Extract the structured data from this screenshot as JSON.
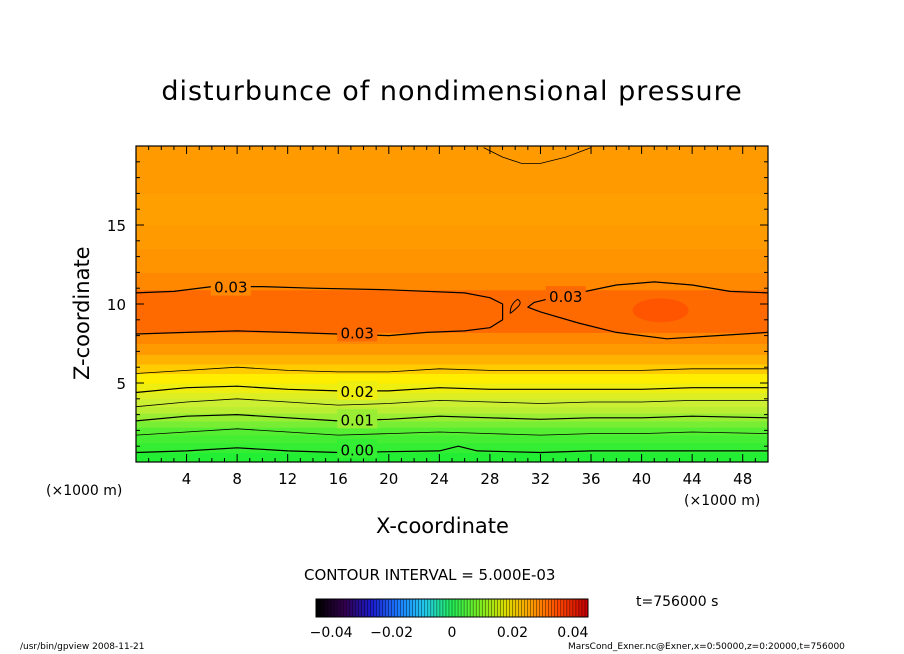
{
  "chart_data": {
    "type": "contour",
    "title": "disturbunce of nondimensional pressure",
    "xlabel": "X-coordinate",
    "ylabel": "Z-coordinate",
    "x_unit": "(×1000 m)",
    "y_unit": "(×1000 m)",
    "xlim": [
      0,
      50
    ],
    "ylim": [
      0,
      20
    ],
    "x_ticks": [
      4,
      8,
      12,
      16,
      20,
      24,
      28,
      32,
      36,
      40,
      44,
      48
    ],
    "y_ticks": [
      5,
      10,
      15
    ],
    "contour_interval_text": "CONTOUR INTERVAL = 5.000E-03",
    "contour_labels": [
      {
        "text": "0.03",
        "x": 7.5,
        "z": 11.1
      },
      {
        "text": "0.03",
        "x": 17.5,
        "z": 8.2
      },
      {
        "text": "0.03",
        "x": 34.0,
        "z": 10.5
      },
      {
        "text": "0.02",
        "x": 17.5,
        "z": 4.5
      },
      {
        "text": "0.01",
        "x": 17.5,
        "z": 2.7
      },
      {
        "text": "0.00",
        "x": 17.5,
        "z": 0.8
      }
    ],
    "contours": [
      {
        "level": 0.0,
        "points": [
          [
            0,
            0.6
          ],
          [
            4,
            0.7
          ],
          [
            8,
            0.9
          ],
          [
            12,
            0.7
          ],
          [
            16,
            0.6
          ],
          [
            20,
            0.65
          ],
          [
            24,
            0.7
          ],
          [
            25.5,
            1.0
          ],
          [
            27,
            0.7
          ],
          [
            32,
            0.6
          ],
          [
            36,
            0.7
          ],
          [
            40,
            0.7
          ],
          [
            44,
            0.7
          ],
          [
            50,
            0.7
          ]
        ]
      },
      {
        "level": 0.005,
        "points": [
          [
            0,
            1.7
          ],
          [
            4,
            1.9
          ],
          [
            8,
            2.1
          ],
          [
            12,
            1.9
          ],
          [
            16,
            1.7
          ],
          [
            20,
            1.8
          ],
          [
            24,
            1.9
          ],
          [
            28,
            1.8
          ],
          [
            32,
            1.7
          ],
          [
            36,
            1.8
          ],
          [
            40,
            1.8
          ],
          [
            44,
            1.9
          ],
          [
            50,
            1.8
          ]
        ]
      },
      {
        "level": 0.01,
        "points": [
          [
            0,
            2.6
          ],
          [
            4,
            2.9
          ],
          [
            8,
            3.0
          ],
          [
            12,
            2.8
          ],
          [
            16,
            2.6
          ],
          [
            20,
            2.7
          ],
          [
            24,
            2.9
          ],
          [
            28,
            2.8
          ],
          [
            32,
            2.7
          ],
          [
            36,
            2.8
          ],
          [
            40,
            2.8
          ],
          [
            44,
            2.9
          ],
          [
            50,
            2.8
          ]
        ]
      },
      {
        "level": 0.015,
        "points": [
          [
            0,
            3.5
          ],
          [
            4,
            3.8
          ],
          [
            8,
            4.0
          ],
          [
            12,
            3.8
          ],
          [
            16,
            3.6
          ],
          [
            20,
            3.7
          ],
          [
            24,
            3.9
          ],
          [
            28,
            3.8
          ],
          [
            32,
            3.7
          ],
          [
            36,
            3.8
          ],
          [
            40,
            3.8
          ],
          [
            44,
            3.9
          ],
          [
            50,
            3.9
          ]
        ]
      },
      {
        "level": 0.02,
        "points": [
          [
            0,
            4.4
          ],
          [
            4,
            4.7
          ],
          [
            8,
            4.8
          ],
          [
            12,
            4.6
          ],
          [
            16,
            4.5
          ],
          [
            20,
            4.5
          ],
          [
            24,
            4.7
          ],
          [
            28,
            4.6
          ],
          [
            32,
            4.6
          ],
          [
            36,
            4.6
          ],
          [
            40,
            4.6
          ],
          [
            44,
            4.7
          ],
          [
            50,
            4.7
          ]
        ]
      },
      {
        "level": 0.025,
        "points": [
          [
            0,
            5.6
          ],
          [
            4,
            5.8
          ],
          [
            8,
            6.0
          ],
          [
            12,
            5.8
          ],
          [
            16,
            5.7
          ],
          [
            20,
            5.7
          ],
          [
            24,
            5.9
          ],
          [
            28,
            5.8
          ],
          [
            32,
            5.8
          ],
          [
            36,
            5.8
          ],
          [
            40,
            5.8
          ],
          [
            44,
            5.9
          ],
          [
            50,
            5.9
          ]
        ]
      },
      {
        "level": 0.03,
        "points": [
          [
            0,
            8.1
          ],
          [
            4,
            8.2
          ],
          [
            8,
            8.3
          ],
          [
            12,
            8.2
          ],
          [
            16,
            8.1
          ],
          [
            20,
            8.0
          ],
          [
            23,
            8.2
          ],
          [
            26,
            8.3
          ],
          [
            28,
            8.5
          ],
          [
            29,
            9.0
          ],
          [
            29,
            10.0
          ],
          [
            28,
            10.4
          ],
          [
            26,
            10.7
          ],
          [
            20,
            10.9
          ],
          [
            14,
            11.0
          ],
          [
            10,
            11.1
          ],
          [
            6,
            11.1
          ],
          [
            3,
            10.8
          ],
          [
            0,
            10.7
          ]
        ]
      },
      {
        "level": 0.03,
        "points": [
          [
            50,
            8.2
          ],
          [
            46,
            8.0
          ],
          [
            42,
            7.8
          ],
          [
            38,
            8.2
          ],
          [
            35,
            8.8
          ],
          [
            32,
            9.5
          ],
          [
            31,
            9.8
          ],
          [
            31.5,
            10.1
          ],
          [
            33,
            10.4
          ],
          [
            35,
            10.7
          ],
          [
            38,
            11.2
          ],
          [
            41,
            11.4
          ],
          [
            44,
            11.2
          ],
          [
            47,
            10.8
          ],
          [
            50,
            10.7
          ]
        ]
      },
      {
        "level": 0.035,
        "points": [
          [
            27.5,
            19.9
          ],
          [
            29,
            19.3
          ],
          [
            30.5,
            18.9
          ],
          [
            32,
            18.9
          ],
          [
            34,
            19.3
          ],
          [
            36,
            19.9
          ]
        ]
      }
    ],
    "fill_bands": [
      {
        "from": 0,
        "to": 0.6,
        "color": "#22ee33"
      },
      {
        "from": 0.6,
        "to": 1.2,
        "color": "#33ee33"
      },
      {
        "from": 1.2,
        "to": 1.7,
        "color": "#44ee33"
      },
      {
        "from": 1.7,
        "to": 2.2,
        "color": "#55ee33"
      },
      {
        "from": 2.2,
        "to": 2.6,
        "color": "#77ee33"
      },
      {
        "from": 2.6,
        "to": 3.1,
        "color": "#99ee33"
      },
      {
        "from": 3.1,
        "to": 3.5,
        "color": "#bbee33"
      },
      {
        "from": 3.5,
        "to": 4.0,
        "color": "#ccee33"
      },
      {
        "from": 4.0,
        "to": 4.4,
        "color": "#ddee22"
      },
      {
        "from": 4.4,
        "to": 5.0,
        "color": "#eeee11"
      },
      {
        "from": 5.0,
        "to": 5.6,
        "color": "#ffee00"
      },
      {
        "from": 5.6,
        "to": 6.2,
        "color": "#ffcc00"
      },
      {
        "from": 6.2,
        "to": 6.8,
        "color": "#ffb300"
      },
      {
        "from": 6.8,
        "to": 7.5,
        "color": "#ff9a00"
      },
      {
        "from": 7.5,
        "to": 8.2,
        "color": "#ff8800"
      },
      {
        "from": 8.2,
        "to": 10.9,
        "color": "#ff6a00"
      },
      {
        "from": 10.9,
        "to": 12.0,
        "color": "#ff8800"
      },
      {
        "from": 12.0,
        "to": 13.5,
        "color": "#ff9400"
      },
      {
        "from": 13.5,
        "to": 15.0,
        "color": "#ff9a00"
      },
      {
        "from": 15.0,
        "to": 17.0,
        "color": "#ffa000"
      },
      {
        "from": 17.0,
        "to": 20.0,
        "color": "#ff9a00"
      }
    ],
    "colorbar": {
      "range": [
        -0.045,
        0.045
      ],
      "tick_labels": [
        "−0.04",
        "−0.02",
        "0",
        "0.02",
        "0.04"
      ],
      "tick_values": [
        -0.04,
        -0.02,
        0,
        0.02,
        0.04
      ],
      "colors": [
        "#000000",
        "#33004d",
        "#1a1acc",
        "#1a7aff",
        "#22ccee",
        "#22ee55",
        "#77ee22",
        "#dddd00",
        "#ff9900",
        "#ff4400",
        "#c80000"
      ]
    }
  },
  "title": "disturbunce of nondimensional pressure",
  "xlabel": "X-coordinate",
  "ylabel": "Z-coordinate",
  "x_unit_text": "(×1000 m)",
  "y_unit_text": "(×1000 m)",
  "contour_interval": "CONTOUR INTERVAL = 5.000E-03",
  "time_label": "t=756000 s",
  "footer_left": "/usr/bin/gpview  2008-11-21",
  "footer_right": "MarsCond_Exner.nc@Exner,x=0:50000,z=0:20000,t=756000"
}
